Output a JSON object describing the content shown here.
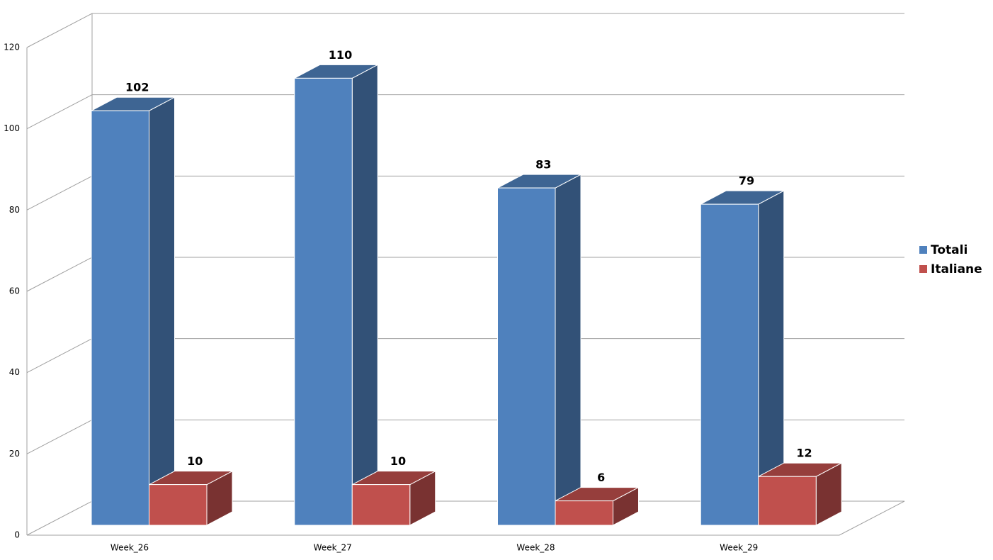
{
  "chart_data": {
    "type": "bar3d",
    "categories": [
      "Week_26",
      "Week_27",
      "Week_28",
      "Week_29"
    ],
    "series": [
      {
        "name": "Totali",
        "color": "#4f81bd",
        "values": [
          102,
          110,
          83,
          79
        ]
      },
      {
        "name": "Italiane",
        "color": "#c0504d",
        "values": [
          10,
          10,
          6,
          12
        ]
      }
    ],
    "ylim": [
      0,
      120
    ],
    "yticks": [
      0,
      20,
      40,
      60,
      80,
      100,
      120
    ],
    "grid": true,
    "legend": "right"
  }
}
